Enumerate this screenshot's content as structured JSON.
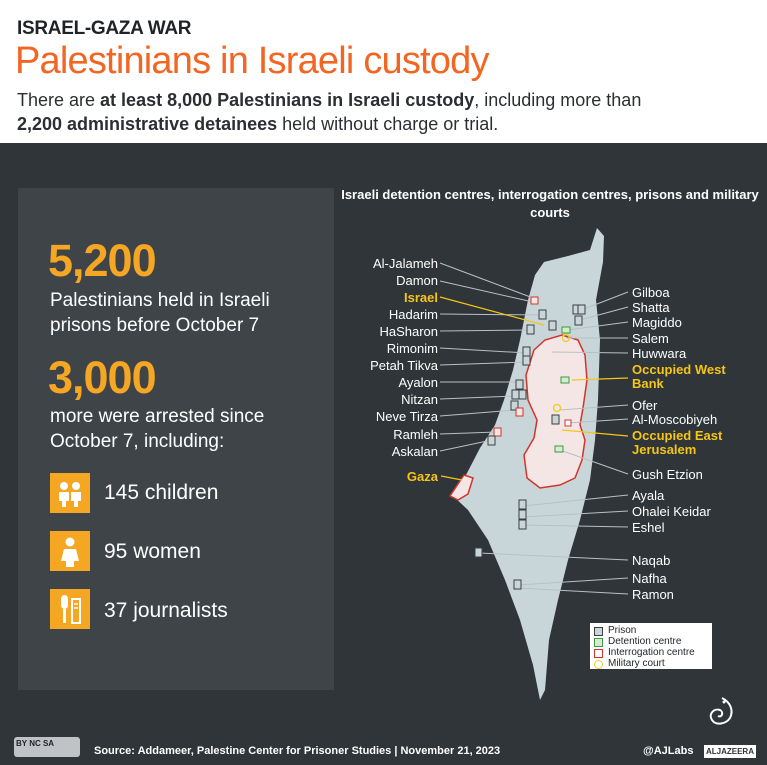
{
  "header": {
    "kicker": "ISRAEL-GAZA WAR",
    "title": "Palestinians in Israeli custody",
    "subtitle_part1": "There are ",
    "subtitle_bold1": "at least 8,000 Palestinians in Israeli custody",
    "subtitle_part2": ", including more than ",
    "subtitle_bold2": "2,200 administrative detainees",
    "subtitle_part3": " held without charge or trial."
  },
  "stats": {
    "held_number": "5,200",
    "held_text": "Palestinians held in Israeli prisons before October 7",
    "arrested_number": "3,000",
    "arrested_text": "more were arrested since October 7, including:",
    "breakdown": [
      {
        "icon": "children-icon",
        "label": "145 children"
      },
      {
        "icon": "woman-icon",
        "label": "95 women"
      },
      {
        "icon": "journalist-microphone-icon",
        "label": "37 journalists"
      }
    ]
  },
  "map": {
    "title": "Israeli detention centres, interrogation centres, prisons and military courts",
    "left_labels": [
      "Al-Jalameh",
      "Damon",
      "Israel",
      "Hadarim",
      "HaSharon",
      "Rimonim",
      "Petah Tikva",
      "Ayalon",
      "Nitzan",
      "Neve Tirza",
      "Ramleh",
      "Askalan",
      "Gaza"
    ],
    "right_labels": [
      "Gilboa",
      "Shatta",
      "Magiddo",
      "Salem",
      "Huwwara",
      "Occupied West Bank",
      "Ofer",
      "Al-Moscobiyeh",
      "Occupied East Jerusalem",
      "Gush Etzion",
      "Ayala",
      "Ohalei Keidar",
      "Eshel",
      "Naqab",
      "Nafha",
      "Ramon"
    ],
    "highlighted_labels": [
      "Israel",
      "Gaza",
      "Occupied West Bank",
      "Occupied East Jerusalem"
    ]
  },
  "legend": [
    {
      "label": "Prison",
      "symbol": "prison-icon"
    },
    {
      "label": "Detention centre",
      "symbol": "detention-icon"
    },
    {
      "label": "Interrogation centre",
      "symbol": "interrogation-icon"
    },
    {
      "label": "Military court",
      "symbol": "court-icon"
    }
  ],
  "footer": {
    "cc_text": "BY NC SA",
    "source": "Source: Addameer, Palestine Center for Prisoner Studies  |  November 21, 2023",
    "handle": "@AJLabs",
    "brand": "ALJAZEERA"
  },
  "colors": {
    "accent": "#f26522",
    "number": "#f5a623",
    "highlight": "#f5c518",
    "background": "#2f3538",
    "panel": "#3e4448",
    "land": "#c9d6d9",
    "west_bank": "#f5e6e6",
    "border": "#d0342c"
  }
}
